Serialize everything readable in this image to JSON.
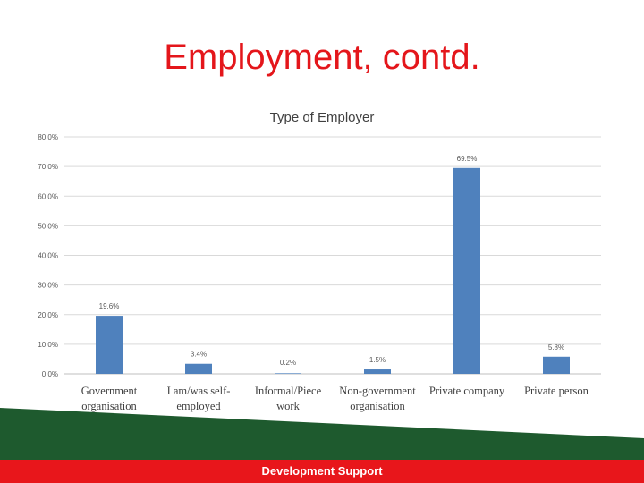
{
  "slide": {
    "title": "Employment, contd.",
    "footer_text": "Development Support"
  },
  "colors": {
    "title": "#e4161b",
    "bar": "#4f81bd",
    "green_band": "#1e5a2e",
    "red_band": "#e8161b"
  },
  "chart_data": {
    "type": "bar",
    "title": "Type of Employer",
    "categories": [
      [
        "Government",
        "organisation"
      ],
      [
        "I am/was self-",
        "employed"
      ],
      [
        "Informal/Piece",
        "work"
      ],
      [
        "Non-government",
        "organisation"
      ],
      [
        "Private company"
      ],
      [
        "Private person"
      ]
    ],
    "values": [
      19.6,
      3.4,
      0.2,
      1.5,
      69.5,
      5.8
    ],
    "data_labels": [
      "19.6%",
      "3.4%",
      "0.2%",
      "1.5%",
      "69.5%",
      "5.8%"
    ],
    "y_ticks": [
      "0.0%",
      "10.0%",
      "20.0%",
      "30.0%",
      "40.0%",
      "50.0%",
      "60.0%",
      "70.0%",
      "80.0%"
    ],
    "ylim": [
      0,
      80
    ],
    "grid": true
  }
}
